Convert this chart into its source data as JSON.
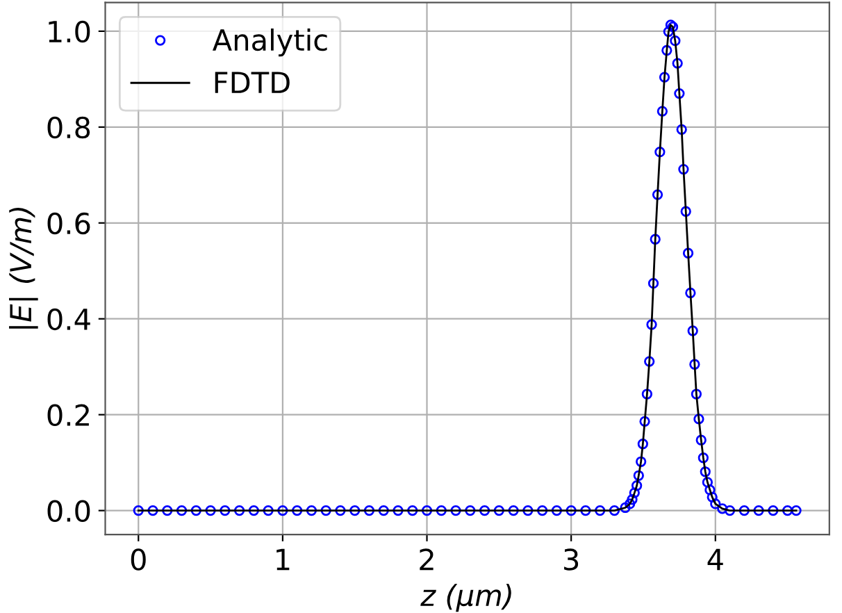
{
  "chart_data": {
    "type": "line",
    "xlabel": "z (μm)",
    "ylabel": "|E| (V/m)",
    "x": [
      0,
      0.1,
      0.2,
      0.3,
      0.4,
      0.5,
      0.6,
      0.7,
      0.8,
      0.9,
      1.0,
      1.1,
      1.2,
      1.3,
      1.4,
      1.5,
      1.6,
      1.7,
      1.8,
      1.9,
      2.0,
      2.1,
      2.2,
      2.3,
      2.4,
      2.5,
      2.6,
      2.7,
      2.8,
      2.9,
      3.0,
      3.1,
      3.2,
      3.3,
      3.375,
      3.407,
      3.423,
      3.439,
      3.455,
      3.468,
      3.484,
      3.497,
      3.51,
      3.526,
      3.542,
      3.558,
      3.57,
      3.583,
      3.599,
      3.615,
      3.632,
      3.647,
      3.663,
      3.675,
      3.69,
      3.705,
      3.721,
      3.737,
      3.75,
      3.766,
      3.779,
      3.795,
      3.811,
      3.827,
      3.843,
      3.856,
      3.868,
      3.885,
      3.901,
      3.916,
      3.93,
      3.945,
      3.962,
      3.978,
      4.0,
      4.048,
      4.1,
      4.2,
      4.3,
      4.4,
      4.5,
      4.56
    ],
    "series": [
      {
        "name": "Analytic",
        "type": "scatter",
        "color": "#0000ff",
        "marker": "circle",
        "values": [
          0,
          0,
          0,
          0,
          0,
          0,
          0,
          0,
          0,
          0,
          0,
          0,
          0,
          0,
          0,
          0,
          0,
          0,
          0,
          0,
          0,
          0,
          0,
          0,
          0,
          0,
          0,
          0,
          0,
          0,
          0,
          0,
          0,
          0,
          0.006,
          0.014,
          0.023,
          0.037,
          0.052,
          0.073,
          0.102,
          0.139,
          0.186,
          0.243,
          0.311,
          0.388,
          0.474,
          0.566,
          0.659,
          0.748,
          0.833,
          0.904,
          0.96,
          0.999,
          1.013,
          1.009,
          0.98,
          0.933,
          0.87,
          0.795,
          0.712,
          0.624,
          0.537,
          0.454,
          0.375,
          0.305,
          0.243,
          0.191,
          0.147,
          0.11,
          0.081,
          0.059,
          0.043,
          0.028,
          0.014,
          0.004,
          0,
          0,
          0,
          0,
          0,
          0
        ]
      },
      {
        "name": "FDTD",
        "color": "#000000",
        "line_style": "solid",
        "values": [
          0,
          0,
          0,
          0,
          0,
          0,
          0,
          0,
          0,
          0,
          0,
          0,
          0,
          0,
          0,
          0,
          0,
          0,
          0,
          0,
          0,
          0,
          0,
          0,
          0,
          0,
          0,
          0,
          0,
          0,
          0,
          0,
          0,
          0,
          0.006,
          0.014,
          0.023,
          0.037,
          0.052,
          0.073,
          0.102,
          0.139,
          0.186,
          0.243,
          0.311,
          0.388,
          0.474,
          0.566,
          0.659,
          0.748,
          0.833,
          0.904,
          0.96,
          0.999,
          1.013,
          1.009,
          0.98,
          0.933,
          0.87,
          0.795,
          0.712,
          0.624,
          0.537,
          0.454,
          0.375,
          0.305,
          0.243,
          0.191,
          0.147,
          0.11,
          0.081,
          0.059,
          0.043,
          0.028,
          0.014,
          0.004,
          0,
          0,
          0,
          0,
          0,
          0
        ]
      }
    ],
    "xlim": [
      -0.23,
      4.79
    ],
    "ylim": [
      -0.05,
      1.06
    ],
    "xticks": [
      0,
      1,
      2,
      3,
      4
    ],
    "yticks": [
      {
        "value": 0,
        "label": "0.0"
      },
      {
        "value": 0.2,
        "label": "0.2"
      },
      {
        "value": 0.4,
        "label": "0.4"
      },
      {
        "value": 0.6,
        "label": "0.6"
      },
      {
        "value": 0.8,
        "label": "0.8"
      },
      {
        "value": 1.0,
        "label": "1.0"
      }
    ],
    "grid": true,
    "legend": "top left"
  }
}
